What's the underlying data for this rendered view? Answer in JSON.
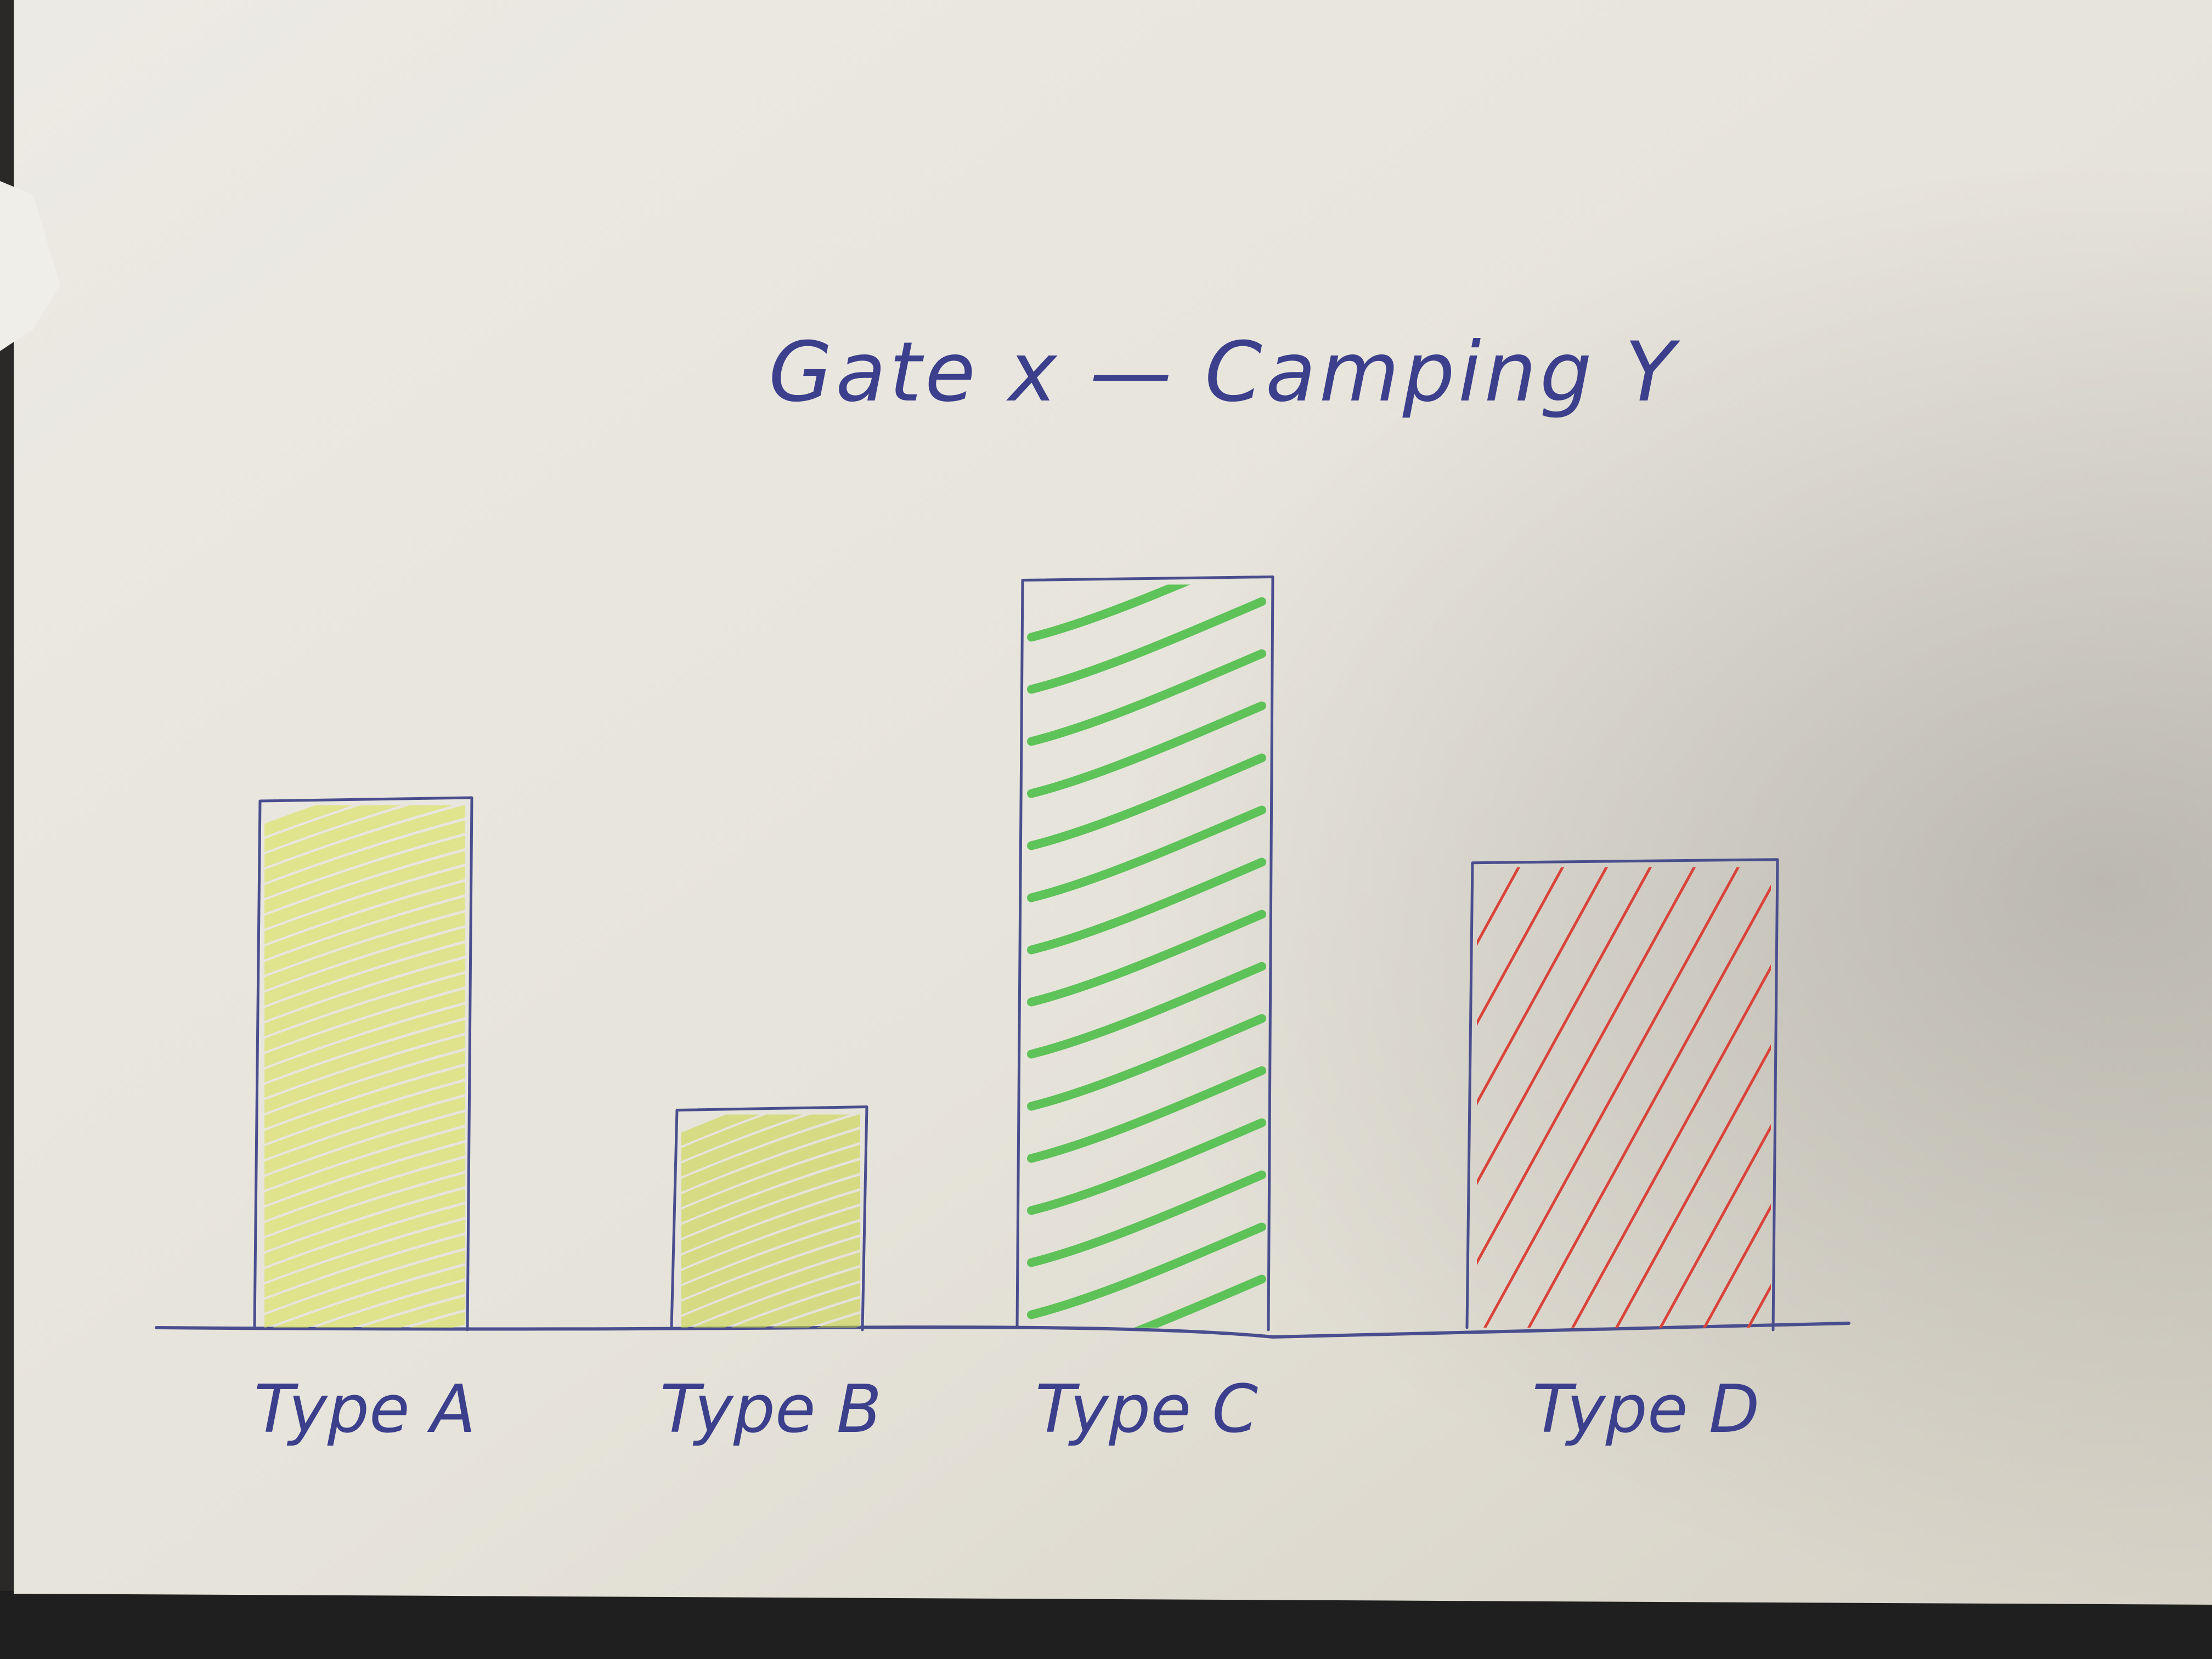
{
  "chart_data": {
    "type": "bar",
    "title": "Gate x — Camping Y",
    "categories": [
      "Type A",
      "Type B",
      "Type C",
      "Type D"
    ],
    "values": [
      0.6,
      0.25,
      0.85,
      0.53
    ],
    "value_scale": "relative (no axis or values printed); 1.0 = top of drawing area",
    "fills": [
      {
        "color": "#d8e24a",
        "style": "dense scribble"
      },
      {
        "color": "#c9d63c",
        "style": "dense scribble"
      },
      {
        "color": "#4fbf4a",
        "style": "diagonal loops"
      },
      {
        "color": "#d9433a",
        "style": "diagonal hatch"
      }
    ],
    "outline_color": "#4a4e8e",
    "xlabel": "",
    "ylabel": "",
    "grid": false,
    "legend": "none"
  }
}
